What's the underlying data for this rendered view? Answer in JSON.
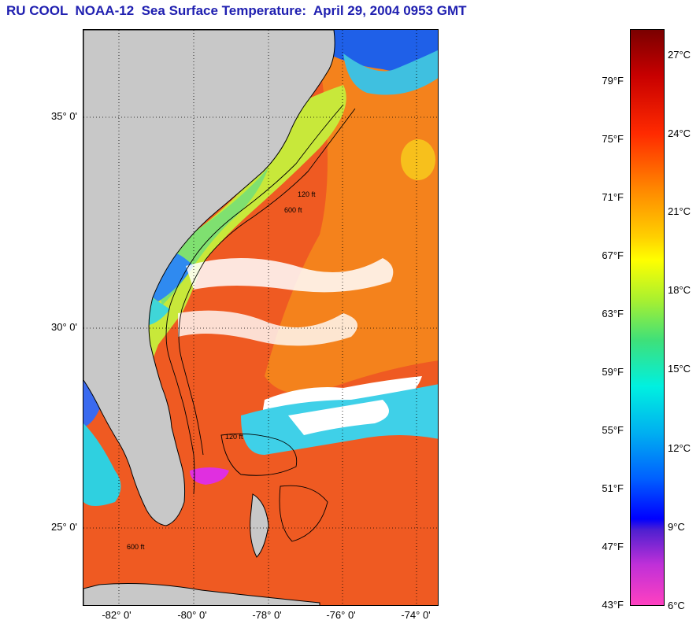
{
  "title": "RU COOL  NOAA-12  Sea Surface Temperature:  April 29, 2004 0953 GMT",
  "latitude_labels": [
    "35° 0'",
    "30° 0'",
    "25° 0'"
  ],
  "longitude_labels": [
    "-82° 0'",
    "-80° 0'",
    "-78° 0'",
    "-76° 0'",
    "-74° 0'"
  ],
  "contour_labels": [
    "120 ft",
    "600 ft",
    "120 ft",
    "600 ft"
  ],
  "colorbar": {
    "fahrenheit_labels": [
      "79°F",
      "75°F",
      "71°F",
      "67°F",
      "63°F",
      "59°F",
      "55°F",
      "51°F",
      "47°F",
      "43°F"
    ],
    "celsius_labels": [
      "27°C",
      "24°C",
      "21°C",
      "18°C",
      "15°C",
      "12°C",
      "9°C",
      "6°C"
    ]
  },
  "colors": {
    "title": "#1f1fb0",
    "land": "#c8c8c8",
    "cloud": "#ffffff",
    "sst_hot": "#e63a1a",
    "sst_warm": "#f7a21b",
    "sst_mid": "#d8f03a",
    "sst_cool": "#3fd6d8",
    "sst_cold": "#1530e8",
    "sst_coldest": "#ff2fd0"
  }
}
